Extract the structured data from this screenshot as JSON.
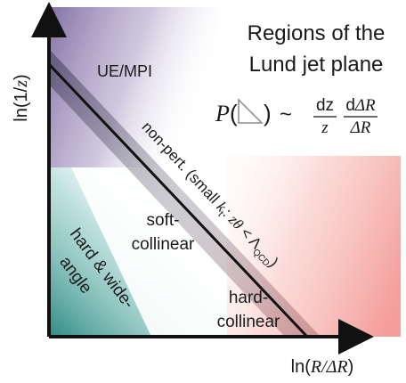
{
  "title": {
    "line1": "Regions of the",
    "line2": "Lund jet plane"
  },
  "formula": {
    "lhs_symbol": "P",
    "open_paren": "(",
    "close_paren": ")",
    "tilde": "~",
    "frac1_num": "dz",
    "frac1_den": "z",
    "frac2_num_d": "d",
    "frac2_num_var": "ΔR",
    "frac2_den": "ΔR"
  },
  "axes": {
    "y_label_main": "ln(1/",
    "y_label_var": "z",
    "y_label_close": ")",
    "x_label_main": "ln(",
    "x_label_var": "R/ΔR",
    "x_label_close": ")"
  },
  "regions": {
    "ue_mpi": "UE/MPI",
    "soft_collinear_1": "soft-",
    "soft_collinear_2": "collinear",
    "hard_wide_1": "hard & wide-",
    "hard_wide_2": "angle",
    "hard_collinear_1": "hard-",
    "hard_collinear_2": "collinear"
  },
  "diagonal_label": {
    "part1": "non-pert. (small ",
    "kt_k": "k",
    "kt_sub": "t",
    "part2": ": ",
    "z_var": "zθ",
    "part3": " < Λ",
    "lambda_sub": "QCD",
    "part4": ")"
  },
  "colors": {
    "purple": "#7c6aa0",
    "teal": "#2e8b84",
    "salmon": "#f08a8a",
    "axis": "#111111"
  }
}
